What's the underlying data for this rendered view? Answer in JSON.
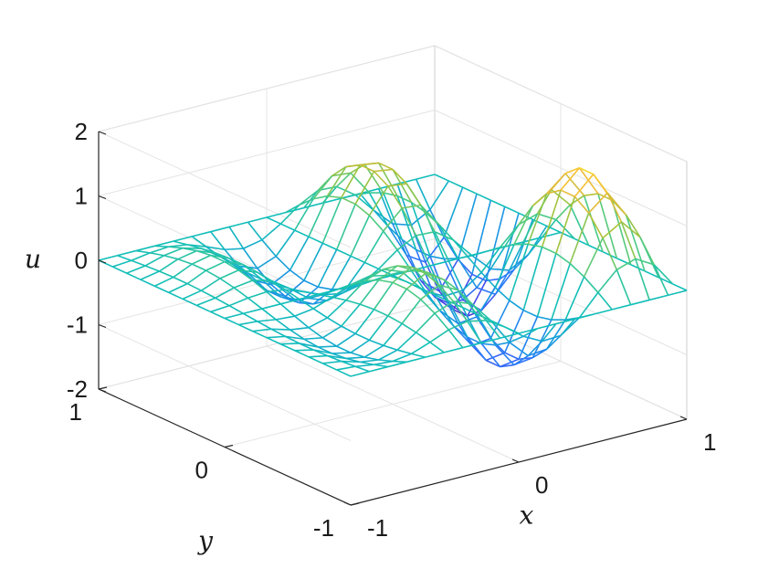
{
  "chart_data": {
    "type": "surface",
    "style": "mesh",
    "colormap": "parula",
    "xlabel": "x",
    "ylabel": "y",
    "zlabel": "u",
    "xlim": [
      -1,
      1
    ],
    "ylim": [
      -1,
      1
    ],
    "zlim": [
      -2,
      2
    ],
    "x_ticks": [
      "-1",
      "0",
      "1"
    ],
    "y_ticks": [
      "-1",
      "0",
      "1"
    ],
    "z_ticks": [
      "-2",
      "-1",
      "0",
      "1",
      "2"
    ],
    "grid": true,
    "view": {
      "azimuth": -37.5,
      "elevation": 30
    },
    "mesh_size": [
      19,
      19
    ],
    "function": "u(x,y) = sin(2*pi*x) * sin(pi*y) * (1 + x) - approx. sampled surface on a 19x19 grid over [-1,1] x [-1,1]"
  }
}
